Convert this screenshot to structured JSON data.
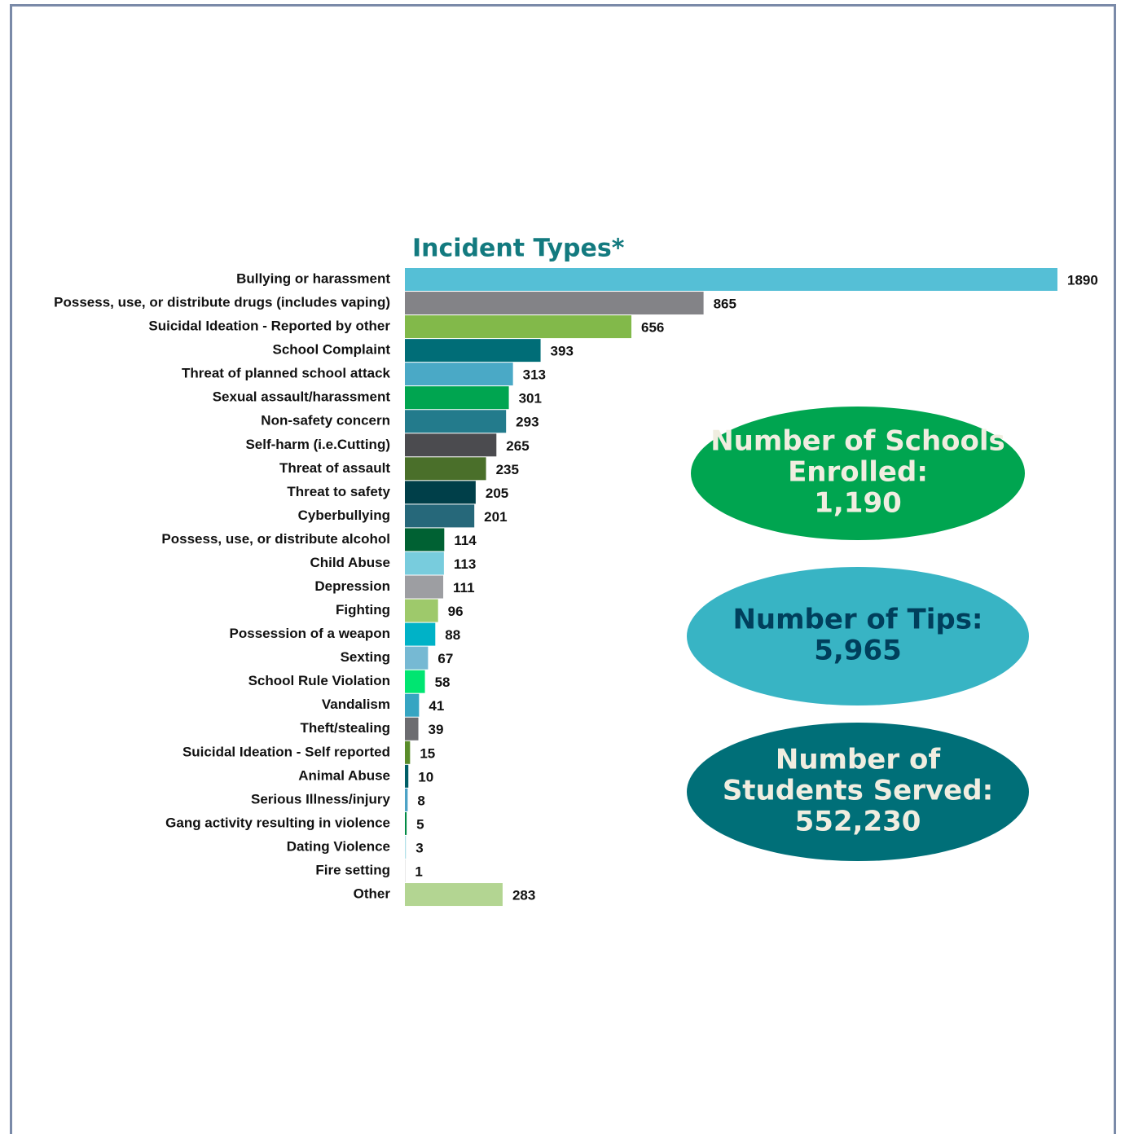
{
  "chart_data": {
    "type": "bar",
    "orientation": "horizontal",
    "title": "Incident Types*",
    "categories": [
      "Bullying or harassment",
      "Possess, use, or distribute drugs (includes vaping)",
      "Suicidal Ideation - Reported by other",
      "School Complaint",
      "Threat of planned school attack",
      "Sexual assault/harassment",
      "Non-safety concern",
      "Self-harm (i.e.Cutting)",
      "Threat of assault",
      "Threat to safety",
      "Cyberbullying",
      "Possess, use, or distribute alcohol",
      "Child Abuse",
      "Depression",
      "Fighting",
      "Possession of a weapon",
      "Sexting",
      "School Rule Violation",
      "Vandalism",
      "Theft/stealing",
      "Suicidal Ideation - Self reported",
      "Animal Abuse",
      "Serious Illness/injury",
      "Gang activity resulting in violence",
      "Dating Violence",
      "Fire setting",
      "Other"
    ],
    "values": [
      1890,
      865,
      656,
      393,
      313,
      301,
      293,
      265,
      235,
      205,
      201,
      114,
      113,
      111,
      96,
      88,
      67,
      58,
      41,
      39,
      15,
      10,
      8,
      5,
      3,
      1,
      283
    ],
    "colors": [
      "#55bfd6",
      "#838387",
      "#82b94a",
      "#006d77",
      "#4aa9c6",
      "#00a550",
      "#237b8c",
      "#4b4b4f",
      "#4a6f2a",
      "#003f49",
      "#26687a",
      "#006133",
      "#78ccdd",
      "#9d9ea2",
      "#9ec96b",
      "#00b2c7",
      "#76b9d3",
      "#00e571",
      "#36a5c2",
      "#6c6c70",
      "#5a8c2a",
      "#005e66",
      "#4da3c6",
      "#008a45",
      "#b0e0e8",
      "#cccccc",
      "#b3d592"
    ],
    "callouts": [
      {
        "lines": [
          "Number of Schools",
          "Enrolled:"
        ],
        "value": "1,190",
        "fill": "#00a550",
        "text_color": "#f0ede0"
      },
      {
        "lines": [
          "Number of Tips:"
        ],
        "value": "5,965",
        "fill": "#38b4c4",
        "text_color": "#003f5c"
      },
      {
        "lines": [
          "Number of",
          "Students Served:"
        ],
        "value": "552,230",
        "fill": "#006f78",
        "text_color": "#f0ede0"
      }
    ]
  }
}
